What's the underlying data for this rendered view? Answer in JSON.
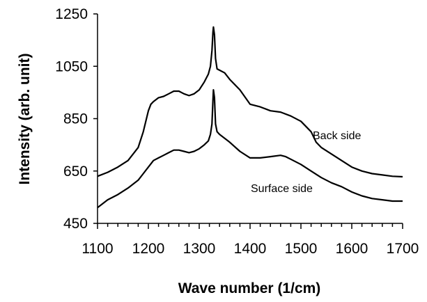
{
  "chart_data": {
    "type": "line",
    "xlabel": "Wave number (1/cm)",
    "ylabel": "Intensity (arb. unit)",
    "xlim": [
      1100,
      1700
    ],
    "ylim": [
      450,
      1250
    ],
    "xticks": [
      1100,
      1200,
      1300,
      1400,
      1500,
      1600,
      1700
    ],
    "yticks": [
      450,
      650,
      850,
      1050,
      1250
    ],
    "grid": false,
    "series": [
      {
        "name": "Back side",
        "x": [
          1100,
          1120,
          1140,
          1160,
          1180,
          1190,
          1200,
          1205,
          1210,
          1220,
          1230,
          1240,
          1250,
          1260,
          1270,
          1280,
          1290,
          1300,
          1310,
          1318,
          1322,
          1325,
          1327,
          1328,
          1330,
          1332,
          1335,
          1340,
          1350,
          1360,
          1380,
          1400,
          1420,
          1440,
          1460,
          1480,
          1500,
          1520,
          1530,
          1540,
          1560,
          1580,
          1600,
          1620,
          1640,
          1660,
          1680,
          1700
        ],
        "values": [
          630,
          645,
          665,
          690,
          740,
          800,
          880,
          905,
          915,
          930,
          935,
          945,
          955,
          955,
          945,
          938,
          945,
          960,
          990,
          1020,
          1050,
          1110,
          1180,
          1200,
          1170,
          1080,
          1040,
          1035,
          1025,
          1000,
          960,
          905,
          895,
          880,
          875,
          860,
          840,
          800,
          760,
          740,
          715,
          690,
          665,
          650,
          640,
          635,
          630,
          628
        ]
      },
      {
        "name": "Surface side",
        "x": [
          1100,
          1120,
          1140,
          1160,
          1180,
          1190,
          1200,
          1210,
          1220,
          1230,
          1240,
          1250,
          1260,
          1270,
          1280,
          1290,
          1300,
          1310,
          1318,
          1322,
          1325,
          1327,
          1328,
          1330,
          1332,
          1335,
          1340,
          1350,
          1360,
          1380,
          1400,
          1420,
          1440,
          1460,
          1470,
          1480,
          1500,
          1520,
          1540,
          1560,
          1580,
          1600,
          1620,
          1640,
          1660,
          1680,
          1700
        ],
        "values": [
          510,
          540,
          560,
          585,
          615,
          640,
          665,
          690,
          700,
          710,
          720,
          730,
          730,
          725,
          720,
          725,
          735,
          750,
          765,
          790,
          830,
          920,
          960,
          930,
          830,
          800,
          790,
          775,
          760,
          725,
          700,
          700,
          705,
          710,
          705,
          695,
          675,
          650,
          625,
          605,
          590,
          570,
          555,
          545,
          540,
          535,
          535
        ]
      }
    ],
    "annotations": [
      "Back side",
      "Surface side"
    ]
  }
}
